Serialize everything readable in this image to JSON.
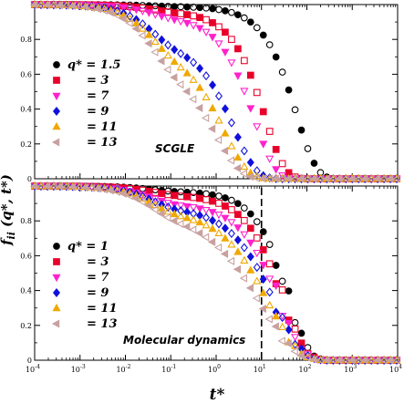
{
  "chart_data": {
    "type": "scatter",
    "x_scale": "log",
    "xlim": [
      0.0001,
      10000
    ],
    "ylim": [
      0,
      1.0
    ],
    "xlabel": "t*",
    "ylabel": "f_ii (q*, t*)",
    "x_tick_labels": [
      "10^-4",
      "10^-3",
      "10^-2",
      "10^-1",
      "10^0",
      "10^1",
      "10^2",
      "10^3",
      "10^4"
    ],
    "y_tick_labels": [
      "0",
      "0.2",
      "0.4",
      "0.6",
      "0.8"
    ],
    "colors": {
      "s1": "#000000",
      "s3": "#e8002a",
      "s7": "#ff22cc",
      "s9": "#1010dd",
      "s11": "#f0a800",
      "s13": "#c8a0a0"
    },
    "panels": [
      {
        "label": "SCGLE",
        "legend": [
          {
            "text": "q* = 1.5",
            "marker": "circle",
            "color": "#000000"
          },
          {
            "text": "= 3",
            "marker": "square",
            "color": "#e8002a"
          },
          {
            "text": "= 7",
            "marker": "triangle-down",
            "color": "#ff22cc"
          },
          {
            "text": "= 9",
            "marker": "diamond",
            "color": "#1010dd"
          },
          {
            "text": "= 11",
            "marker": "triangle-up",
            "color": "#f0a800"
          },
          {
            "text": "= 13",
            "marker": "triangle-left",
            "color": "#c8a0a0"
          }
        ],
        "series": [
          {
            "marker": "circle",
            "color": "#000000",
            "tau": 60,
            "beta": 1.0,
            "start": 1.0,
            "plateau": 0.99
          },
          {
            "marker": "square",
            "color": "#e8002a",
            "tau": 12,
            "beta": 1.0,
            "start": 1.0,
            "plateau": 0.96
          },
          {
            "marker": "triangle-down",
            "color": "#ff22cc",
            "tau": 7,
            "beta": 0.95,
            "start": 1.0,
            "plateau": 0.93
          },
          {
            "marker": "diamond",
            "color": "#1010dd",
            "tau": 2.5,
            "beta": 0.9,
            "start": 1.0,
            "plateau": 0.78
          },
          {
            "marker": "triangle-up",
            "color": "#f0a800",
            "tau": 1.5,
            "beta": 0.85,
            "start": 1.0,
            "plateau": 0.74
          },
          {
            "marker": "triangle-left",
            "color": "#c8a0a0",
            "tau": 1.0,
            "beta": 0.8,
            "start": 1.0,
            "plateau": 0.68
          }
        ]
      },
      {
        "label": "Molecular dynamics",
        "legend": [
          {
            "text": "q* = 1",
            "marker": "circle",
            "color": "#000000"
          },
          {
            "text": "= 3",
            "marker": "square",
            "color": "#e8002a"
          },
          {
            "text": "= 7",
            "marker": "triangle-down",
            "color": "#ff22cc"
          },
          {
            "text": "= 9",
            "marker": "diamond",
            "color": "#1010dd"
          },
          {
            "text": "= 11",
            "marker": "triangle-up",
            "color": "#f0a800"
          },
          {
            "text": "= 13",
            "marker": "triangle-left",
            "color": "#c8a0a0"
          }
        ],
        "dashed_x": 10,
        "series": [
          {
            "marker": "circle",
            "color": "#000000",
            "tau": 40,
            "beta": 1.0,
            "start": 1.0,
            "plateau": 0.97
          },
          {
            "marker": "square",
            "color": "#e8002a",
            "tau": 30,
            "beta": 0.9,
            "start": 1.0,
            "plateau": 0.95
          },
          {
            "marker": "triangle-down",
            "color": "#ff22cc",
            "tau": 25,
            "beta": 0.85,
            "start": 1.0,
            "plateau": 0.9
          },
          {
            "marker": "diamond",
            "color": "#1010dd",
            "tau": 20,
            "beta": 0.75,
            "start": 1.0,
            "plateau": 0.88
          },
          {
            "marker": "triangle-up",
            "color": "#f0a800",
            "tau": 15,
            "beta": 0.7,
            "start": 1.0,
            "plateau": 0.86
          },
          {
            "marker": "triangle-left",
            "color": "#c8a0a0",
            "tau": 10,
            "beta": 0.6,
            "start": 1.0,
            "plateau": 0.85
          }
        ]
      }
    ]
  }
}
